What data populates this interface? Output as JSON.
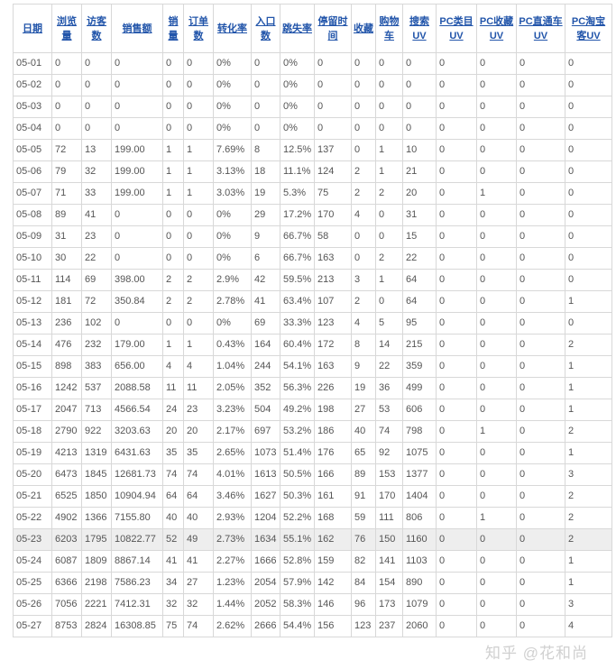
{
  "table": {
    "headers": [
      "日期",
      "浏览量",
      "访客数",
      "销售额",
      "销量",
      "订单数",
      "转化率",
      "入口数",
      "跳失率",
      "停留时间",
      "收藏",
      "购物车",
      "搜索UV",
      "PC类目UV",
      "PC收藏UV",
      "PC直通车UV",
      "PC淘宝客UV"
    ],
    "highlighted_row": "05-23",
    "rows": [
      [
        "05-01",
        "0",
        "0",
        "0",
        "0",
        "0",
        "0%",
        "0",
        "0%",
        "0",
        "0",
        "0",
        "0",
        "0",
        "0",
        "0",
        "0"
      ],
      [
        "05-02",
        "0",
        "0",
        "0",
        "0",
        "0",
        "0%",
        "0",
        "0%",
        "0",
        "0",
        "0",
        "0",
        "0",
        "0",
        "0",
        "0"
      ],
      [
        "05-03",
        "0",
        "0",
        "0",
        "0",
        "0",
        "0%",
        "0",
        "0%",
        "0",
        "0",
        "0",
        "0",
        "0",
        "0",
        "0",
        "0"
      ],
      [
        "05-04",
        "0",
        "0",
        "0",
        "0",
        "0",
        "0%",
        "0",
        "0%",
        "0",
        "0",
        "0",
        "0",
        "0",
        "0",
        "0",
        "0"
      ],
      [
        "05-05",
        "72",
        "13",
        "199.00",
        "1",
        "1",
        "7.69%",
        "8",
        "12.5%",
        "137",
        "0",
        "1",
        "10",
        "0",
        "0",
        "0",
        "0"
      ],
      [
        "05-06",
        "79",
        "32",
        "199.00",
        "1",
        "1",
        "3.13%",
        "18",
        "11.1%",
        "124",
        "2",
        "1",
        "21",
        "0",
        "0",
        "0",
        "0"
      ],
      [
        "05-07",
        "71",
        "33",
        "199.00",
        "1",
        "1",
        "3.03%",
        "19",
        "5.3%",
        "75",
        "2",
        "2",
        "20",
        "0",
        "1",
        "0",
        "0"
      ],
      [
        "05-08",
        "89",
        "41",
        "0",
        "0",
        "0",
        "0%",
        "29",
        "17.2%",
        "170",
        "4",
        "0",
        "31",
        "0",
        "0",
        "0",
        "0"
      ],
      [
        "05-09",
        "31",
        "23",
        "0",
        "0",
        "0",
        "0%",
        "9",
        "66.7%",
        "58",
        "0",
        "0",
        "15",
        "0",
        "0",
        "0",
        "0"
      ],
      [
        "05-10",
        "30",
        "22",
        "0",
        "0",
        "0",
        "0%",
        "6",
        "66.7%",
        "163",
        "0",
        "2",
        "22",
        "0",
        "0",
        "0",
        "0"
      ],
      [
        "05-11",
        "114",
        "69",
        "398.00",
        "2",
        "2",
        "2.9%",
        "42",
        "59.5%",
        "213",
        "3",
        "1",
        "64",
        "0",
        "0",
        "0",
        "0"
      ],
      [
        "05-12",
        "181",
        "72",
        "350.84",
        "2",
        "2",
        "2.78%",
        "41",
        "63.4%",
        "107",
        "2",
        "0",
        "64",
        "0",
        "0",
        "0",
        "1"
      ],
      [
        "05-13",
        "236",
        "102",
        "0",
        "0",
        "0",
        "0%",
        "69",
        "33.3%",
        "123",
        "4",
        "5",
        "95",
        "0",
        "0",
        "0",
        "0"
      ],
      [
        "05-14",
        "476",
        "232",
        "179.00",
        "1",
        "1",
        "0.43%",
        "164",
        "60.4%",
        "172",
        "8",
        "14",
        "215",
        "0",
        "0",
        "0",
        "2"
      ],
      [
        "05-15",
        "898",
        "383",
        "656.00",
        "4",
        "4",
        "1.04%",
        "244",
        "54.1%",
        "163",
        "9",
        "22",
        "359",
        "0",
        "0",
        "0",
        "1"
      ],
      [
        "05-16",
        "1242",
        "537",
        "2088.58",
        "11",
        "11",
        "2.05%",
        "352",
        "56.3%",
        "226",
        "19",
        "36",
        "499",
        "0",
        "0",
        "0",
        "1"
      ],
      [
        "05-17",
        "2047",
        "713",
        "4566.54",
        "24",
        "23",
        "3.23%",
        "504",
        "49.2%",
        "198",
        "27",
        "53",
        "606",
        "0",
        "0",
        "0",
        "1"
      ],
      [
        "05-18",
        "2790",
        "922",
        "3203.63",
        "20",
        "20",
        "2.17%",
        "697",
        "53.2%",
        "186",
        "40",
        "74",
        "798",
        "0",
        "1",
        "0",
        "2"
      ],
      [
        "05-19",
        "4213",
        "1319",
        "6431.63",
        "35",
        "35",
        "2.65%",
        "1073",
        "51.4%",
        "176",
        "65",
        "92",
        "1075",
        "0",
        "0",
        "0",
        "1"
      ],
      [
        "05-20",
        "6473",
        "1845",
        "12681.73",
        "74",
        "74",
        "4.01%",
        "1613",
        "50.5%",
        "166",
        "89",
        "153",
        "1377",
        "0",
        "0",
        "0",
        "3"
      ],
      [
        "05-21",
        "6525",
        "1850",
        "10904.94",
        "64",
        "64",
        "3.46%",
        "1627",
        "50.3%",
        "161",
        "91",
        "170",
        "1404",
        "0",
        "0",
        "0",
        "2"
      ],
      [
        "05-22",
        "4902",
        "1366",
        "7155.80",
        "40",
        "40",
        "2.93%",
        "1204",
        "52.2%",
        "168",
        "59",
        "111",
        "806",
        "0",
        "1",
        "0",
        "2"
      ],
      [
        "05-23",
        "6203",
        "1795",
        "10822.77",
        "52",
        "49",
        "2.73%",
        "1634",
        "55.1%",
        "162",
        "76",
        "150",
        "1160",
        "0",
        "0",
        "0",
        "2"
      ],
      [
        "05-24",
        "6087",
        "1809",
        "8867.14",
        "41",
        "41",
        "2.27%",
        "1666",
        "52.8%",
        "159",
        "82",
        "141",
        "1103",
        "0",
        "0",
        "0",
        "1"
      ],
      [
        "05-25",
        "6366",
        "2198",
        "7586.23",
        "34",
        "27",
        "1.23%",
        "2054",
        "57.9%",
        "142",
        "84",
        "154",
        "890",
        "0",
        "0",
        "0",
        "1"
      ],
      [
        "05-26",
        "7056",
        "2221",
        "7412.31",
        "32",
        "32",
        "1.44%",
        "2052",
        "58.3%",
        "146",
        "96",
        "173",
        "1079",
        "0",
        "0",
        "0",
        "3"
      ],
      [
        "05-27",
        "8753",
        "2824",
        "16308.85",
        "75",
        "74",
        "2.62%",
        "2666",
        "54.4%",
        "156",
        "123",
        "237",
        "2060",
        "0",
        "0",
        "0",
        "4"
      ]
    ]
  },
  "watermark": "知乎 @花和尚"
}
